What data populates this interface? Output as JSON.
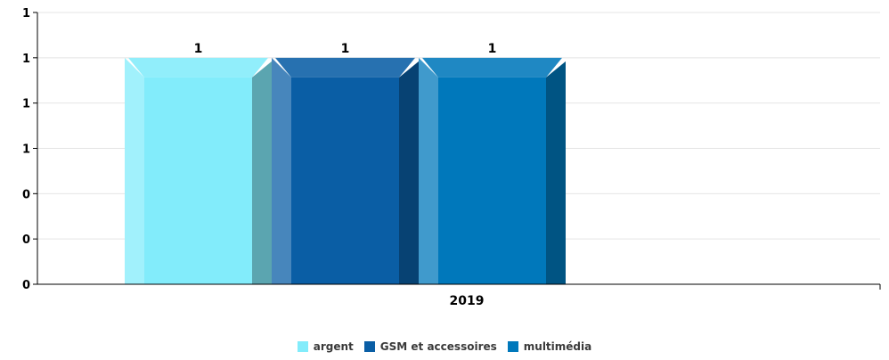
{
  "chart_data": {
    "type": "bar",
    "categories": [
      "2019"
    ],
    "series": [
      {
        "name": "argent",
        "values": [
          1
        ],
        "color": "#82ecfb"
      },
      {
        "name": "GSM et accessoires",
        "values": [
          1
        ],
        "color": "#0a5ea5"
      },
      {
        "name": "multimédia",
        "values": [
          1
        ],
        "color": "#0078bb"
      }
    ],
    "y_tick_labels": [
      "0",
      "0",
      "0",
      "1",
      "1",
      "1",
      "1"
    ],
    "value_labels": [
      "1",
      "1",
      "1"
    ],
    "ylim": [
      0,
      1.2
    ],
    "grid": true,
    "legend_position": "bottom-center"
  }
}
